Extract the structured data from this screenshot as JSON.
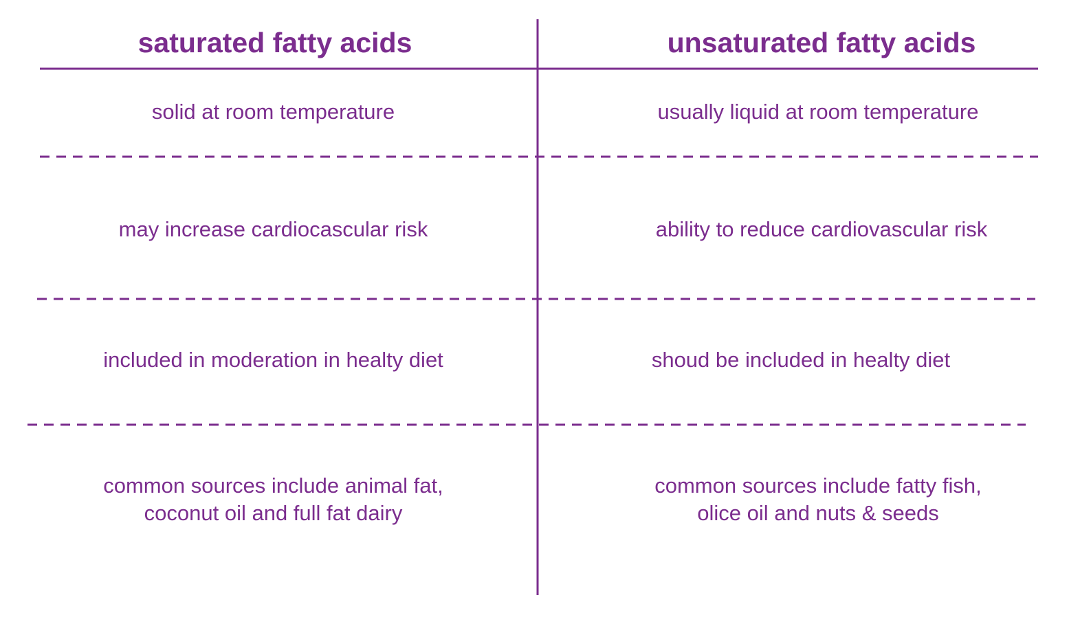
{
  "colors": {
    "accent": "#7b2d8e"
  },
  "headers": {
    "left": "saturated fatty acids",
    "right": "unsaturated fatty acids"
  },
  "rows": [
    {
      "left": "solid at room temperature",
      "right": "usually liquid at room temperature"
    },
    {
      "left": "may increase cardiocascular risk",
      "right": "ability to reduce cardiovascular risk"
    },
    {
      "left": "included in moderation in healty diet",
      "right": "shoud be included in healty diet"
    },
    {
      "left": "common sources include animal fat,\ncoconut oil and full fat dairy",
      "right": "common sources include fatty fish,\nolice oil and nuts & seeds"
    }
  ]
}
